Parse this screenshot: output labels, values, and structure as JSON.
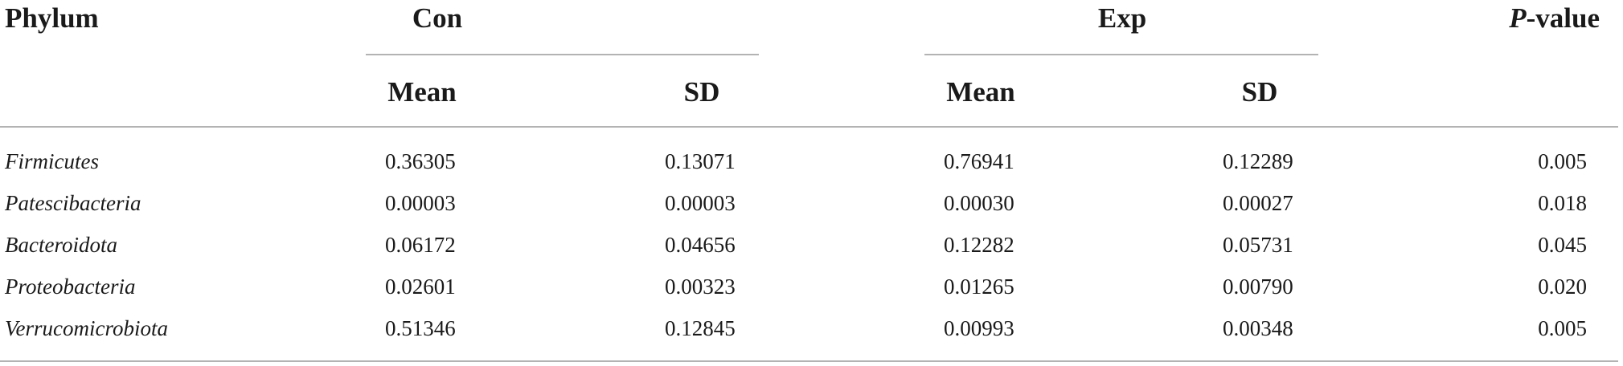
{
  "table": {
    "headers": {
      "phylum": "Phylum",
      "group1": "Con",
      "group2": "Exp",
      "p_prefix": "P",
      "p_suffix": "-value",
      "mean": "Mean",
      "sd": "SD"
    },
    "rows": [
      {
        "phylum": "Firmicutes",
        "con_mean": "0.36305",
        "con_sd": "0.13071",
        "exp_mean": "0.76941",
        "exp_sd": "0.12289",
        "p": "0.005"
      },
      {
        "phylum": "Patescibacteria",
        "con_mean": "0.00003",
        "con_sd": "0.00003",
        "exp_mean": "0.00030",
        "exp_sd": "0.00027",
        "p": "0.018"
      },
      {
        "phylum": "Bacteroidota",
        "con_mean": "0.06172",
        "con_sd": "0.04656",
        "exp_mean": "0.12282",
        "exp_sd": "0.05731",
        "p": "0.045"
      },
      {
        "phylum": "Proteobacteria",
        "con_mean": "0.02601",
        "con_sd": "0.00323",
        "exp_mean": "0.01265",
        "exp_sd": "0.00790",
        "p": "0.020"
      },
      {
        "phylum": "Verrucomicrobiota",
        "con_mean": "0.51346",
        "con_sd": "0.12845",
        "exp_mean": "0.00993",
        "exp_sd": "0.00348",
        "p": "0.005"
      }
    ]
  }
}
